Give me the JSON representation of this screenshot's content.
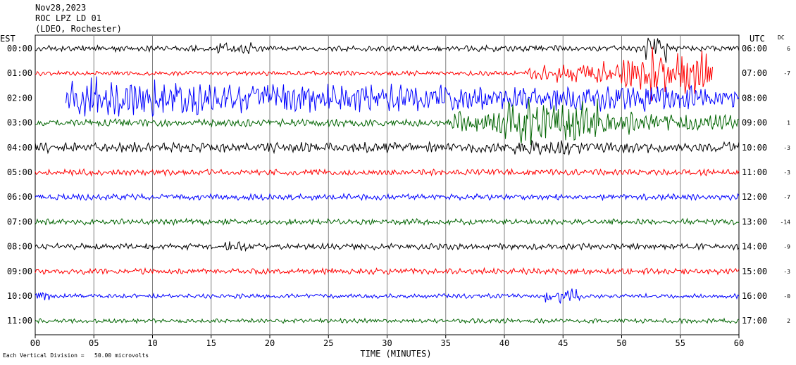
{
  "header": {
    "date": "Nov28,2023",
    "station": "ROC LPZ LD 01",
    "network": "(LDEO, Rochester)"
  },
  "left_timezone": "EST",
  "right_timezone": "UTC",
  "dc_label": "DC",
  "footer_note": "Each Vertical Division =   50.00 microvolts",
  "chart_data": {
    "type": "line",
    "title": "",
    "xlabel": "TIME (MINUTES)",
    "xlim": [
      0,
      60
    ],
    "x_ticks": [
      "00",
      "05",
      "10",
      "15",
      "20",
      "25",
      "30",
      "35",
      "40",
      "45",
      "50",
      "55",
      "60"
    ],
    "x_tick_values": [
      0,
      5,
      10,
      15,
      20,
      25,
      30,
      35,
      40,
      45,
      50,
      55,
      60
    ],
    "grid": true,
    "trace_colors": [
      "#000000",
      "#ff0000",
      "#0000ff",
      "#006400"
    ],
    "rows": [
      {
        "left": "00:00",
        "right": "06:00",
        "dc": "6"
      },
      {
        "left": "01:00",
        "right": "07:00",
        "dc": "-7"
      },
      {
        "left": "02:00",
        "right": "08:00",
        "dc": ""
      },
      {
        "left": "03:00",
        "right": "09:00",
        "dc": "1"
      },
      {
        "left": "04:00",
        "right": "10:00",
        "dc": "-3"
      },
      {
        "left": "05:00",
        "right": "11:00",
        "dc": "-3"
      },
      {
        "left": "06:00",
        "right": "12:00",
        "dc": "-7"
      },
      {
        "left": "07:00",
        "right": "13:00",
        "dc": "-14"
      },
      {
        "left": "08:00",
        "right": "14:00",
        "dc": "-9"
      },
      {
        "left": "09:00",
        "right": "15:00",
        "dc": "-3"
      },
      {
        "left": "10:00",
        "right": "16:00",
        "dc": "-0"
      },
      {
        "left": "11:00",
        "right": "17:00",
        "dc": "2"
      }
    ]
  }
}
